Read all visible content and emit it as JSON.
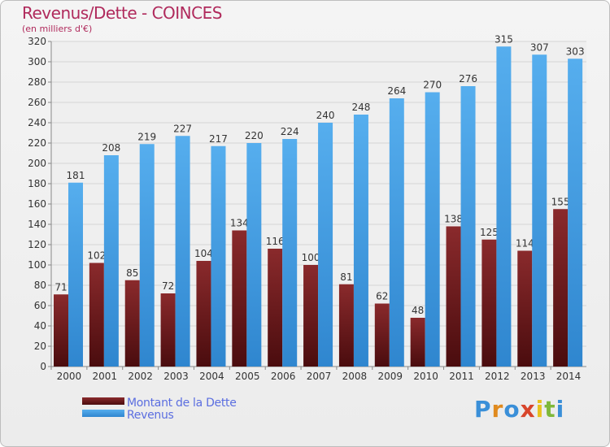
{
  "title": "Revenus/Dette - COINCES",
  "subtitle": "(en milliers d'€)",
  "logo": {
    "text": "Proxiti",
    "letter_colors": [
      "#3a8fd8",
      "#e08a1e",
      "#3a8fd8",
      "#d8452b",
      "#e8c21e",
      "#7fb83a",
      "#3a8fd8"
    ]
  },
  "chart_data": {
    "type": "bar",
    "categories": [
      "2000",
      "2001",
      "2002",
      "2003",
      "2004",
      "2005",
      "2006",
      "2007",
      "2008",
      "2009",
      "2010",
      "2011",
      "2012",
      "2013",
      "2014"
    ],
    "series": [
      {
        "name": "Montant de la Dette",
        "color": "#7a1f22",
        "values": [
          71,
          102,
          85,
          72,
          104,
          134,
          116,
          100,
          81,
          62,
          48,
          138,
          125,
          114,
          155
        ]
      },
      {
        "name": "Revenus",
        "color": "#4aa3e6",
        "values": [
          181,
          208,
          219,
          227,
          217,
          220,
          224,
          240,
          248,
          264,
          270,
          276,
          315,
          307,
          303
        ]
      }
    ],
    "ylim": [
      0,
      320
    ],
    "yticks": [
      0,
      20,
      40,
      60,
      80,
      100,
      120,
      140,
      160,
      180,
      200,
      220,
      240,
      260,
      280,
      300,
      320
    ],
    "grid": true,
    "legend_position": "bottom-left"
  }
}
